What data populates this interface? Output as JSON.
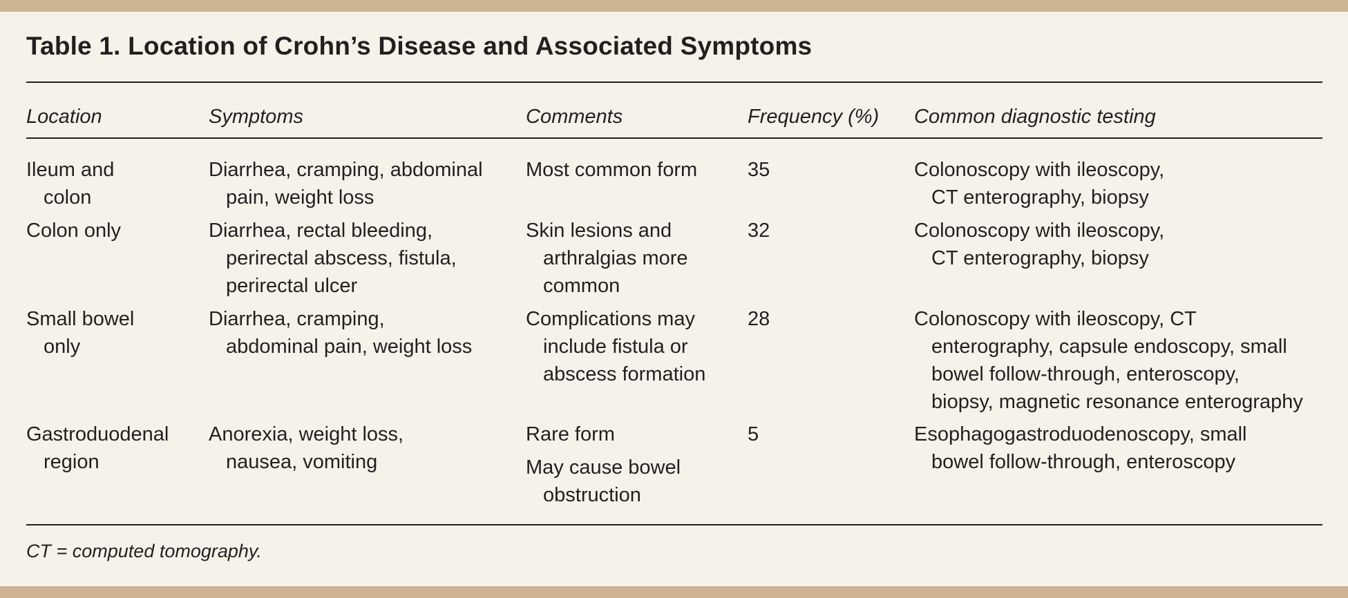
{
  "table": {
    "title": "Table 1. Location of Crohn’s Disease and Associated Symptoms",
    "headers": {
      "location": "Location",
      "symptoms": "Symptoms",
      "comments": "Comments",
      "frequency": "Frequency (%)",
      "testing": "Common diagnostic testing"
    },
    "rows": [
      {
        "location": [
          "Ileum and",
          "colon"
        ],
        "symptoms": [
          "Diarrhea, cramping, abdominal",
          "pain, weight loss"
        ],
        "comments": [
          "Most common form"
        ],
        "frequency": "35",
        "testing": [
          "Colonoscopy with ileoscopy,",
          "CT enterography, biopsy"
        ]
      },
      {
        "location": [
          "Colon only"
        ],
        "symptoms": [
          "Diarrhea, rectal bleeding,",
          "perirectal abscess, fistula,",
          "perirectal ulcer"
        ],
        "comments": [
          "Skin lesions and",
          "arthralgias more",
          "common"
        ],
        "frequency": "32",
        "testing": [
          "Colonoscopy with ileoscopy,",
          "CT enterography, biopsy"
        ]
      },
      {
        "location": [
          "Small bowel",
          "only"
        ],
        "symptoms": [
          "Diarrhea, cramping,",
          "abdominal pain, weight loss"
        ],
        "comments": [
          "Complications may",
          "include fistula or",
          "abscess formation"
        ],
        "frequency": "28",
        "testing": [
          "Colonoscopy with ileoscopy, CT",
          "enterography, capsule endoscopy, small",
          "bowel follow-through, enteroscopy,",
          "biopsy, magnetic resonance enterography"
        ]
      },
      {
        "location": [
          "Gastroduodenal",
          "region"
        ],
        "symptoms": [
          "Anorexia, weight loss,",
          "nausea, vomiting"
        ],
        "comments": [
          "Rare form"
        ],
        "comments2": [
          "May cause bowel",
          "obstruction"
        ],
        "frequency": "5",
        "testing": [
          "Esophagogastroduodenoscopy, small",
          "bowel follow-through, enteroscopy"
        ]
      }
    ],
    "footnote": "CT = computed tomography."
  }
}
